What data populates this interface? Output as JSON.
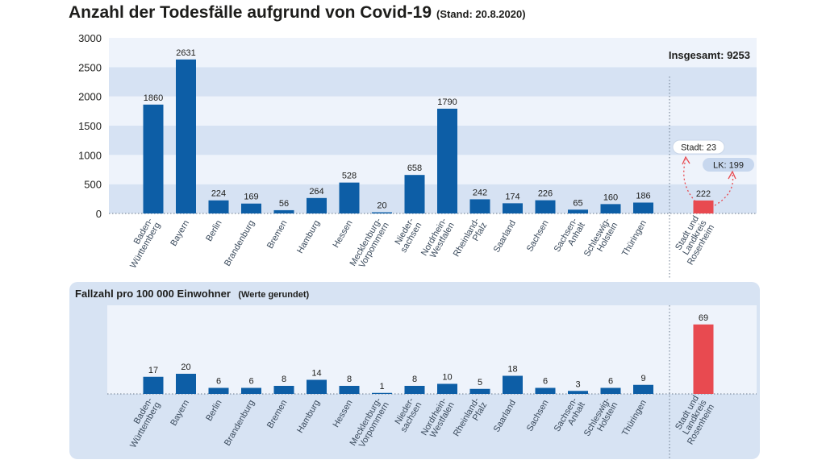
{
  "title": "Anzahl der Todesfälle aufgrund von Covid-19",
  "stand": "(Stand: 20.8.2020)",
  "colors": {
    "bar": "#0d5ea6",
    "highlight": "#e84a50",
    "band_dark": "#d6e2f3",
    "band_light": "#eef3fb",
    "panel": "#d7e3f3",
    "text": "#1d1d1b"
  },
  "chart_data": [
    {
      "type": "bar",
      "title": "Anzahl der Todesfälle aufgrund von Covid-19",
      "subtitle": "(Stand: 20.8.2020)",
      "categories": [
        "Baden-Württemberg",
        "Bayern",
        "Berlin",
        "Brandenburg",
        "Bremen",
        "Hamburg",
        "Hessen",
        "Mecklenburg-Vorpommern",
        "Nieder-sachsen",
        "Nordrhein-Westfalen",
        "Rheinland-Pfalz",
        "Saarland",
        "Sachsen",
        "Sachsen-Anhalt",
        "Schleswig-Holstein",
        "Thüringen",
        "Stadt und Landkreis Rosenheim"
      ],
      "category_lines": [
        [
          "Baden-",
          "Württemberg"
        ],
        [
          "Bayern"
        ],
        [
          "Berlin"
        ],
        [
          "Brandenburg"
        ],
        [
          "Bremen"
        ],
        [
          "Hamburg"
        ],
        [
          "Hessen"
        ],
        [
          "Mecklenburg-",
          "Vorpommern"
        ],
        [
          "Nieder-",
          "sachsen"
        ],
        [
          "Nordrhein-",
          "Westfalen"
        ],
        [
          "Rheinland-",
          "Pfalz"
        ],
        [
          "Saarland"
        ],
        [
          "Sachsen"
        ],
        [
          "Sachsen-",
          "Anhalt"
        ],
        [
          "Schleswig-",
          "Holstein"
        ],
        [
          "Thüringen"
        ],
        [
          "Stadt und",
          "Landkreis",
          "Rosenheim"
        ]
      ],
      "values": [
        1860,
        2631,
        224,
        169,
        56,
        264,
        528,
        20,
        658,
        1790,
        242,
        174,
        226,
        65,
        160,
        186,
        222
      ],
      "highlight_index": 16,
      "ylim": [
        0,
        3000
      ],
      "yticks": [
        0,
        500,
        1000,
        1500,
        2000,
        2500,
        3000
      ],
      "total_label": "Insgesamt: 9253",
      "annotations": [
        "Stadt: 23",
        "LK: 199"
      ],
      "xlabel": "",
      "ylabel": "",
      "grid": "horizontal bands"
    },
    {
      "type": "bar",
      "title": "Fallzahl pro 100 000 Einwohner",
      "subtitle": "(Werte gerundet)",
      "categories": [
        "Baden-Württemberg",
        "Bayern",
        "Berlin",
        "Brandenburg",
        "Bremen",
        "Hamburg",
        "Hessen",
        "Mecklenburg-Vorpommern",
        "Nieder-sachsen",
        "Nordrhein-Westfalen",
        "Rheinland-Pfalz",
        "Saarland",
        "Sachsen",
        "Sachsen-Anhalt",
        "Schleswig-Holstein",
        "Thüringen",
        "Stadt und Landkreis Rosenheim"
      ],
      "values": [
        17,
        20,
        6,
        6,
        8,
        14,
        8,
        1,
        8,
        10,
        5,
        18,
        6,
        3,
        6,
        9,
        69
      ],
      "highlight_index": 16,
      "ylim": [
        0,
        80
      ],
      "xlabel": "",
      "ylabel": ""
    }
  ]
}
